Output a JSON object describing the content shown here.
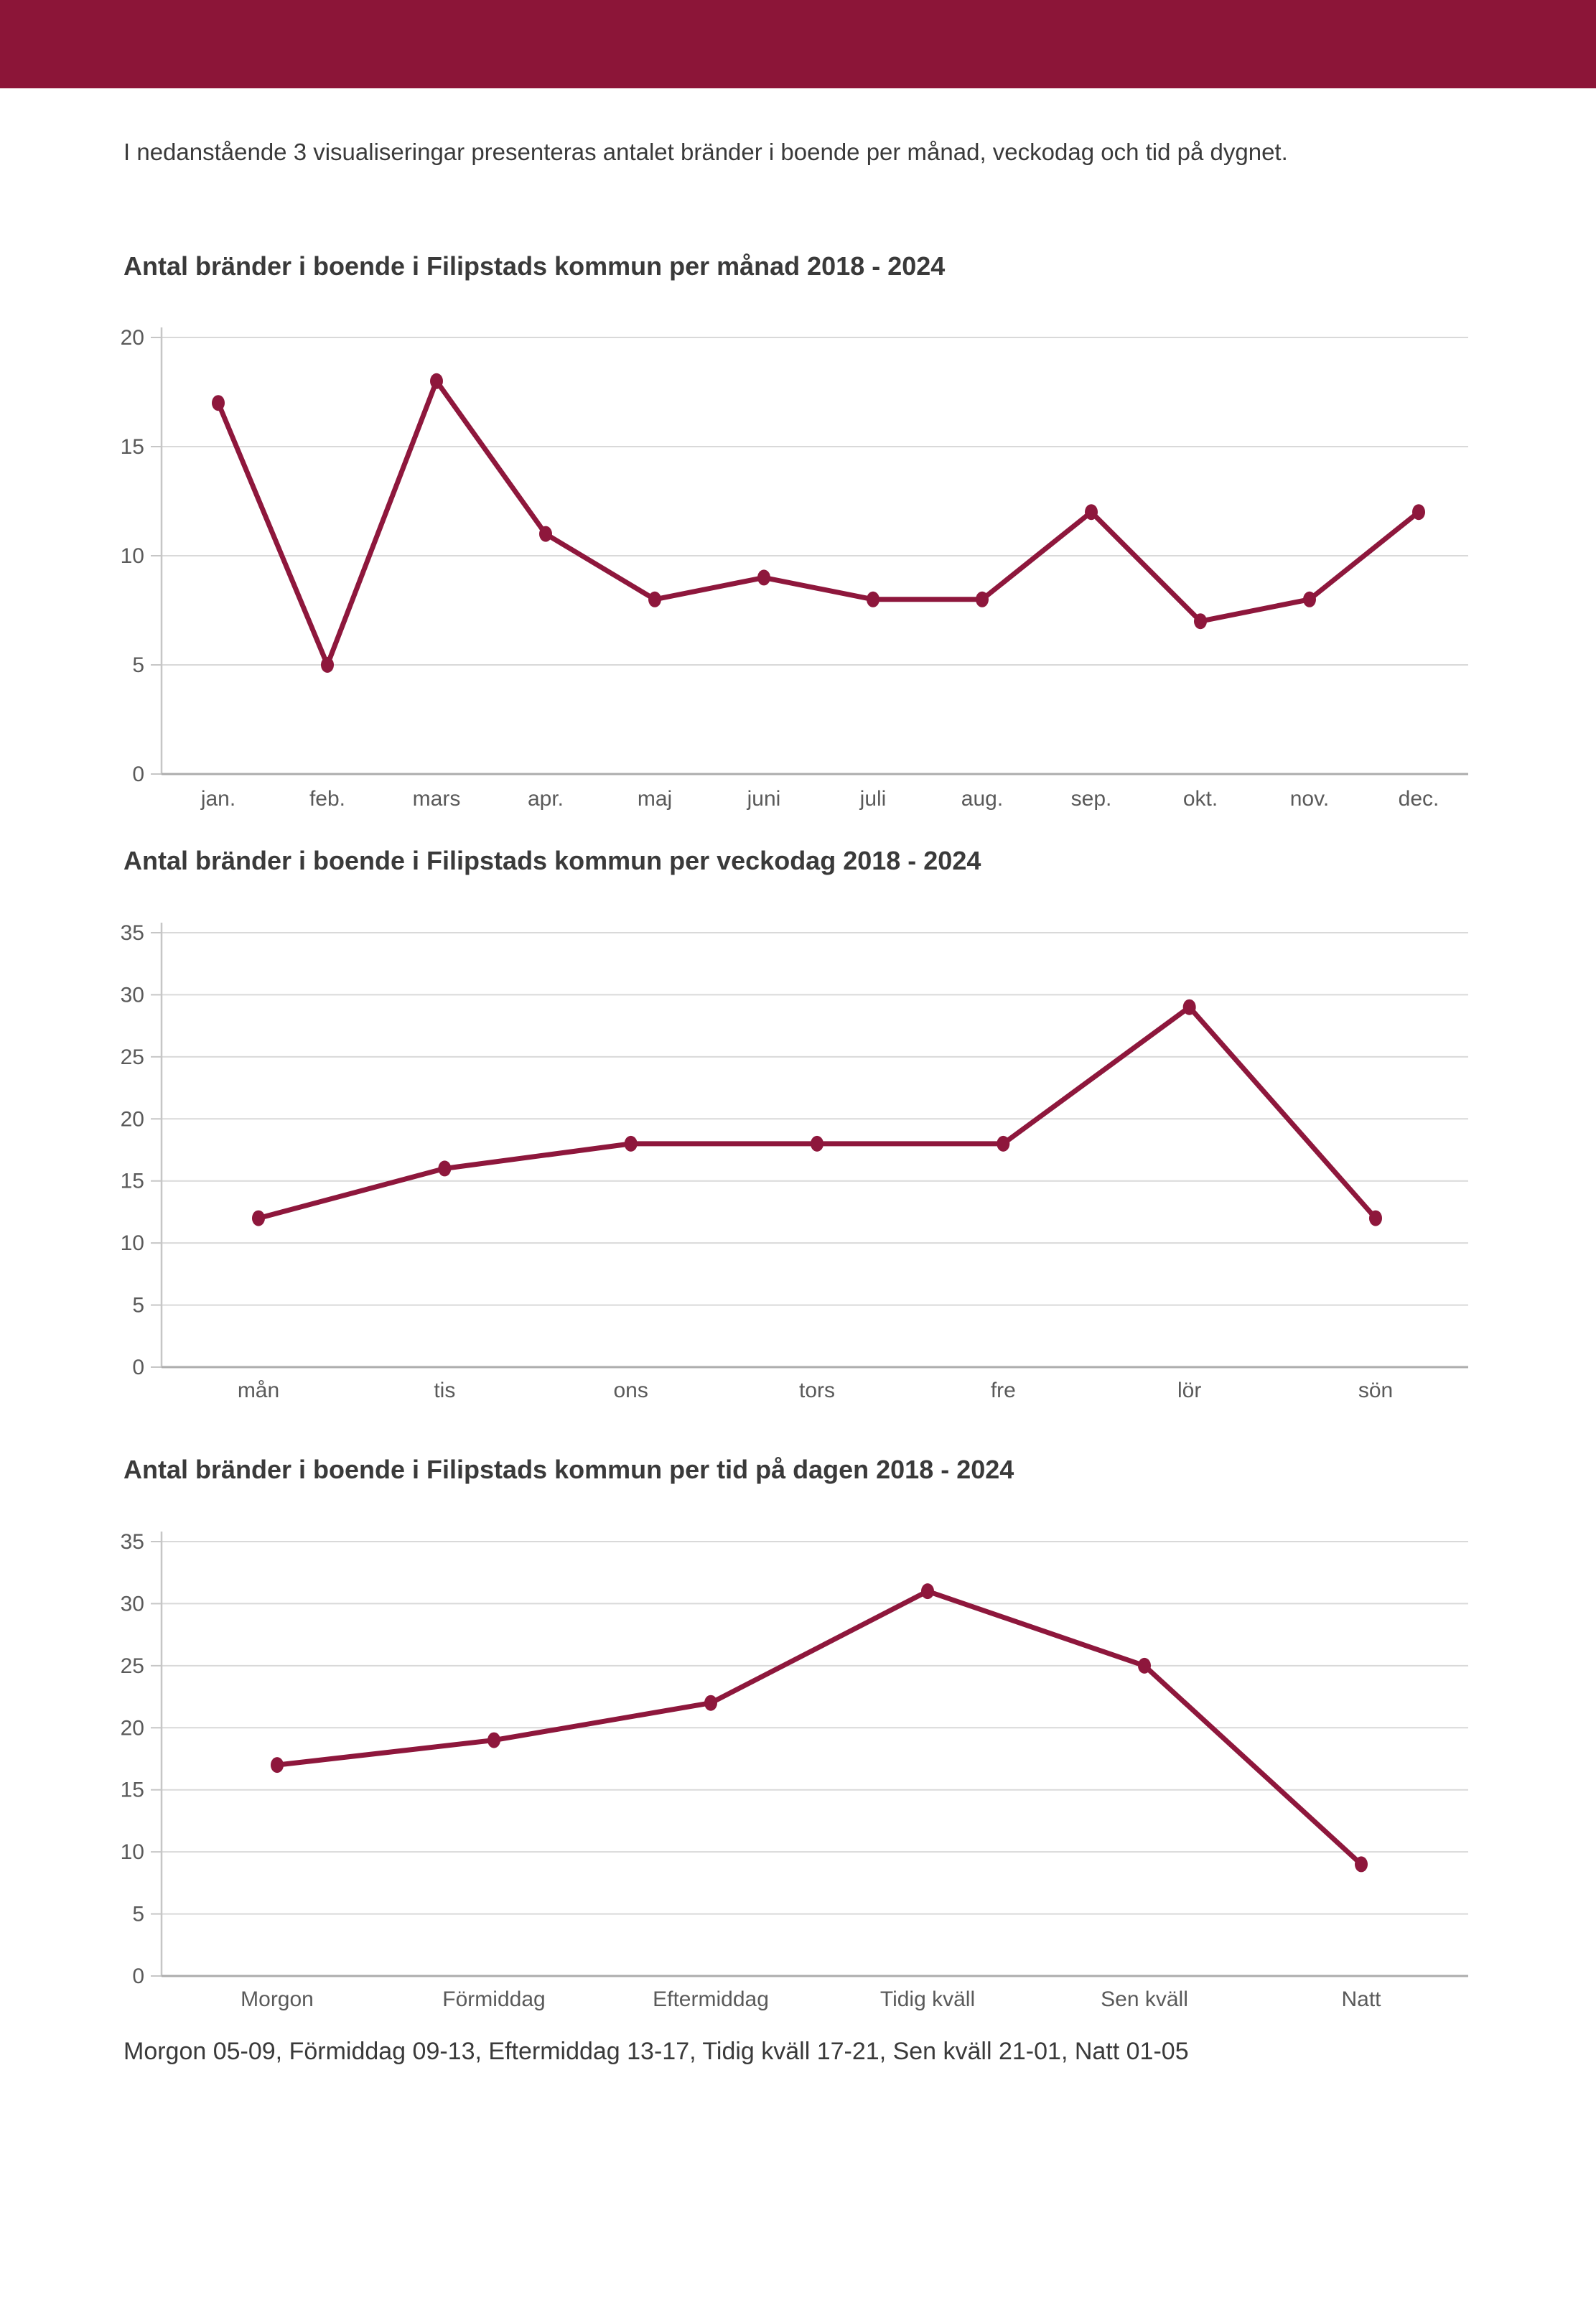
{
  "page": {
    "intro": "I nedanstående 3 visualiseringar presenteras antalet bränder i boende per månad, veckodag och tid på dygnet.",
    "footer_note": "Morgon 05-09, Förmiddag 09-13, Eftermiddag 13-17, Tidig kväll 17-21, Sen kväll 21-01, Natt 01-05"
  },
  "colors": {
    "header_bar": "#8C1538",
    "accent": "#8E173C",
    "gridline": "#D9D9D9",
    "axis": "#C6C6C6",
    "axis_zero": "#ACACAC",
    "tick_label": "#5A5A5A",
    "text": "#3A3A3A"
  },
  "chart_data": [
    {
      "type": "line",
      "title": "Antal bränder i boende i Filipstads kommun per månad 2018 - 2024",
      "categories": [
        "jan.",
        "feb.",
        "mars",
        "apr.",
        "maj",
        "juni",
        "juli",
        "aug.",
        "sep.",
        "okt.",
        "nov.",
        "dec."
      ],
      "values": [
        17,
        5,
        18,
        11,
        8,
        9,
        8,
        8,
        12,
        7,
        8,
        12
      ],
      "xlabel": "",
      "ylabel": "",
      "ylim": [
        0,
        20
      ],
      "ytick_step": 5,
      "grid": true,
      "legend": "none"
    },
    {
      "type": "line",
      "title": "Antal bränder i boende i Filipstads kommun per veckodag 2018 - 2024",
      "categories": [
        "mån",
        "tis",
        "ons",
        "tors",
        "fre",
        "lör",
        "sön"
      ],
      "values": [
        12,
        16,
        18,
        18,
        18,
        29,
        12
      ],
      "xlabel": "",
      "ylabel": "",
      "ylim": [
        0,
        35
      ],
      "ytick_step": 5,
      "grid": true,
      "legend": "none"
    },
    {
      "type": "line",
      "title": "Antal bränder i boende i Filipstads kommun per tid på dagen 2018 - 2024",
      "categories": [
        "Morgon",
        "Förmiddag",
        "Eftermiddag",
        "Tidig kväll",
        "Sen kväll",
        "Natt"
      ],
      "values": [
        17,
        19,
        22,
        31,
        25,
        9
      ],
      "xlabel": "",
      "ylabel": "",
      "ylim": [
        0,
        35
      ],
      "ytick_step": 5,
      "grid": true,
      "legend": "none"
    }
  ]
}
